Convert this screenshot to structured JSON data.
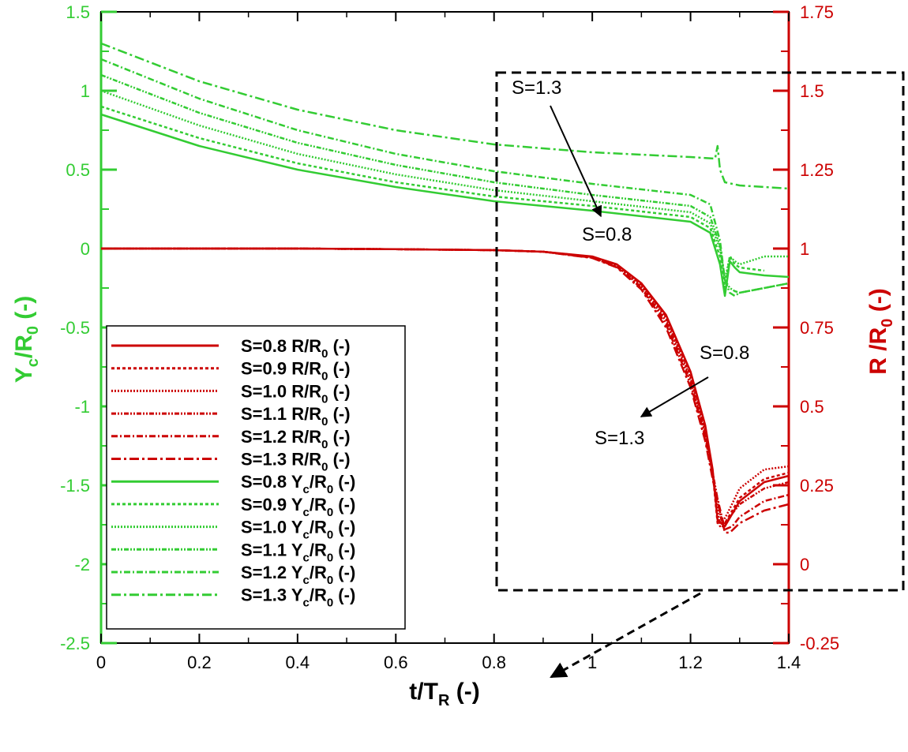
{
  "chart_data": {
    "type": "line",
    "title": "",
    "xlabel": "t/T_R (-)",
    "ylabel_left": "Y_c/R_0 (-)",
    "ylabel_right": "R /R_0 (-)",
    "xlim": [
      0,
      1.4
    ],
    "ylim_left": [
      -2.5,
      1.5
    ],
    "ylim_right": [
      -0.25,
      1.75
    ],
    "xticks": [
      "0",
      "0.2",
      "0.4",
      "0.6",
      "0.8",
      "1",
      "1.2",
      "1.4"
    ],
    "yticks_left": [
      "1.5",
      "1",
      "0.5",
      "0",
      "-0.5",
      "-1",
      "-1.5",
      "-2",
      "-2.5"
    ],
    "yticks_right": [
      "1.75",
      "1.5",
      "1.25",
      "1",
      "0.75",
      "0.5",
      "0.25",
      "0",
      "-0.25"
    ],
    "colors": {
      "radius": "#cc0000",
      "centroid": "#33cc33"
    },
    "series": [
      {
        "name": "S=0.8 R/R0 (-)",
        "label": "S=0.8 R/R",
        "sub": "0",
        "suffix": " (-)",
        "axis": "right",
        "color": "#cc0000",
        "dash": "",
        "x": [
          0,
          0.2,
          0.4,
          0.6,
          0.8,
          0.9,
          1.0,
          1.05,
          1.1,
          1.15,
          1.2,
          1.23,
          1.245,
          1.255,
          1.27,
          1.3,
          1.35,
          1.4
        ],
        "y": [
          1.0,
          1.0,
          1.0,
          0.998,
          0.995,
          0.99,
          0.975,
          0.95,
          0.89,
          0.79,
          0.61,
          0.44,
          0.3,
          0.14,
          0.12,
          0.2,
          0.26,
          0.28
        ]
      },
      {
        "name": "S=0.9 R/R0 (-)",
        "label": "S=0.9 R/R",
        "sub": "0",
        "suffix": " (-)",
        "axis": "right",
        "color": "#cc0000",
        "dash": "4,3",
        "x": [
          0,
          0.2,
          0.4,
          0.6,
          0.8,
          0.9,
          1.0,
          1.05,
          1.1,
          1.15,
          1.2,
          1.23,
          1.245,
          1.255,
          1.27,
          1.3,
          1.35,
          1.4
        ],
        "y": [
          1.0,
          1.0,
          1.0,
          0.998,
          0.995,
          0.99,
          0.974,
          0.948,
          0.886,
          0.785,
          0.6,
          0.43,
          0.29,
          0.13,
          0.13,
          0.21,
          0.27,
          0.29
        ]
      },
      {
        "name": "S=1.0 R/R0 (-)",
        "label": "S=1.0 R/R",
        "sub": "0",
        "suffix": " (-)",
        "axis": "right",
        "color": "#cc0000",
        "dash": "2,2",
        "x": [
          0,
          0.2,
          0.4,
          0.6,
          0.8,
          0.9,
          1.0,
          1.05,
          1.1,
          1.15,
          1.2,
          1.23,
          1.245,
          1.26,
          1.275,
          1.3,
          1.35,
          1.4
        ],
        "y": [
          1.0,
          1.0,
          1.0,
          0.998,
          0.995,
          0.99,
          0.973,
          0.946,
          0.882,
          0.78,
          0.59,
          0.42,
          0.28,
          0.12,
          0.16,
          0.24,
          0.3,
          0.31
        ]
      },
      {
        "name": "S=1.1 R/R0 (-)",
        "label": "S=1.1 R/R",
        "sub": "0",
        "suffix": " (-)",
        "axis": "right",
        "color": "#cc0000",
        "dash": "6,2,2,2,2,2",
        "x": [
          0,
          0.2,
          0.4,
          0.6,
          0.8,
          0.9,
          1.0,
          1.05,
          1.1,
          1.15,
          1.2,
          1.23,
          1.25,
          1.265,
          1.28,
          1.3,
          1.35,
          1.4
        ],
        "y": [
          1.0,
          1.0,
          1.0,
          0.998,
          0.995,
          0.99,
          0.972,
          0.944,
          0.878,
          0.77,
          0.58,
          0.41,
          0.25,
          0.12,
          0.15,
          0.19,
          0.24,
          0.26
        ]
      },
      {
        "name": "S=1.2 R/R0 (-)",
        "label": "S=1.2 R/R",
        "sub": "0",
        "suffix": " (-)",
        "axis": "right",
        "color": "#cc0000",
        "dash": "8,3,2,3",
        "x": [
          0,
          0.2,
          0.4,
          0.6,
          0.8,
          0.9,
          1.0,
          1.05,
          1.1,
          1.15,
          1.2,
          1.23,
          1.25,
          1.27,
          1.285,
          1.3,
          1.35,
          1.4
        ],
        "y": [
          1.0,
          1.0,
          1.0,
          0.998,
          0.995,
          0.99,
          0.971,
          0.942,
          0.874,
          0.76,
          0.57,
          0.4,
          0.24,
          0.11,
          0.12,
          0.15,
          0.2,
          0.22
        ]
      },
      {
        "name": "S=1.3 R/R0 (-)",
        "label": "S=1.3 R/R",
        "sub": "0",
        "suffix": " (-)",
        "axis": "right",
        "color": "#cc0000",
        "dash": "12,4,3,4",
        "x": [
          0,
          0.2,
          0.4,
          0.6,
          0.8,
          0.9,
          1.0,
          1.05,
          1.1,
          1.15,
          1.2,
          1.23,
          1.25,
          1.27,
          1.28,
          1.3,
          1.35,
          1.4
        ],
        "y": [
          1.0,
          1.0,
          1.0,
          0.998,
          0.995,
          0.99,
          0.97,
          0.94,
          0.87,
          0.75,
          0.56,
          0.39,
          0.23,
          0.1,
          0.1,
          0.13,
          0.17,
          0.19
        ]
      },
      {
        "name": "S=0.8 Yc/R0 (-)",
        "label": "S=0.8 Y",
        "sub": "c",
        "mid": "/R",
        "sub2": "0",
        "suffix": " (-)",
        "axis": "left",
        "color": "#33cc33",
        "dash": "",
        "x": [
          0,
          0.2,
          0.4,
          0.6,
          0.8,
          1.0,
          1.2,
          1.24,
          1.26,
          1.27,
          1.28,
          1.29,
          1.3,
          1.35,
          1.4
        ],
        "y": [
          0.85,
          0.65,
          0.5,
          0.39,
          0.3,
          0.24,
          0.17,
          0.1,
          -0.1,
          -0.3,
          -0.08,
          -0.12,
          -0.15,
          -0.17,
          -0.18
        ]
      },
      {
        "name": "S=0.9 Yc/R0 (-)",
        "label": "S=0.9 Y",
        "sub": "c",
        "mid": "/R",
        "sub2": "0",
        "suffix": " (-)",
        "axis": "left",
        "color": "#33cc33",
        "dash": "4,3",
        "x": [
          0,
          0.2,
          0.4,
          0.6,
          0.8,
          1.0,
          1.2,
          1.24,
          1.26,
          1.27,
          1.28,
          1.29,
          1.3,
          1.35
        ],
        "y": [
          0.9,
          0.7,
          0.54,
          0.42,
          0.33,
          0.27,
          0.2,
          0.13,
          -0.05,
          -0.25,
          -0.05,
          -0.1,
          -0.12,
          -0.14
        ]
      },
      {
        "name": "S=1.0 Yc/R0 (-)",
        "label": "S=1.0 Y",
        "sub": "c",
        "mid": "/R",
        "sub2": "0",
        "suffix": " (-)",
        "axis": "left",
        "color": "#33cc33",
        "dash": "2,2",
        "x": [
          0,
          0.2,
          0.4,
          0.6,
          0.8,
          1.0,
          1.2,
          1.24,
          1.26,
          1.27,
          1.28,
          1.29,
          1.3,
          1.35,
          1.4
        ],
        "y": [
          1.0,
          0.78,
          0.6,
          0.47,
          0.37,
          0.3,
          0.23,
          0.16,
          0.0,
          -0.2,
          -0.05,
          -0.08,
          -0.1,
          -0.05,
          -0.05
        ]
      },
      {
        "name": "S=1.1 Yc/R0 (-)",
        "label": "S=1.1 Y",
        "sub": "c",
        "mid": "/R",
        "sub2": "0",
        "suffix": " (-)",
        "axis": "left",
        "color": "#33cc33",
        "dash": "6,2,2,2,2,2",
        "x": [
          0,
          0.2,
          0.4,
          0.6,
          0.8,
          1.0,
          1.2,
          1.24,
          1.26,
          1.27,
          1.28,
          1.29,
          1.3,
          1.35,
          1.4
        ],
        "y": [
          1.1,
          0.86,
          0.67,
          0.53,
          0.42,
          0.34,
          0.27,
          0.2,
          0.02,
          -0.2,
          -0.25,
          -0.27,
          -0.28,
          -0.25,
          -0.22
        ]
      },
      {
        "name": "S=1.2 Yc/R0 (-)",
        "label": "S=1.2 Y",
        "sub": "c",
        "mid": "/R",
        "sub2": "0",
        "suffix": " (-)",
        "axis": "left",
        "color": "#33cc33",
        "dash": "8,3,2,3",
        "x": [
          0,
          0.2,
          0.4,
          0.6,
          0.8,
          1.0,
          1.2,
          1.24,
          1.26,
          1.27,
          1.28,
          1.29,
          1.3,
          1.35,
          1.4
        ],
        "y": [
          1.2,
          0.95,
          0.75,
          0.6,
          0.49,
          0.41,
          0.34,
          0.28,
          0.05,
          -0.2,
          -0.28,
          -0.3,
          -0.28,
          -0.25,
          -0.22
        ]
      },
      {
        "name": "S=1.3 Yc/R0 (-)",
        "label": "S=1.3 Y",
        "sub": "c",
        "mid": "/R",
        "sub2": "0",
        "suffix": " (-)",
        "axis": "left",
        "color": "#33cc33",
        "dash": "12,4,3,4",
        "x": [
          0,
          0.2,
          0.4,
          0.6,
          0.8,
          1.0,
          1.2,
          1.25,
          1.255,
          1.26,
          1.27,
          1.3,
          1.35,
          1.4
        ],
        "y": [
          1.3,
          1.06,
          0.88,
          0.75,
          0.66,
          0.61,
          0.58,
          0.57,
          0.65,
          0.5,
          0.42,
          0.4,
          0.39,
          0.38
        ]
      }
    ],
    "annotations": [
      {
        "id": "ann-s13-top",
        "text": "S=1.3"
      },
      {
        "id": "ann-s08-top",
        "text": "S=0.8"
      },
      {
        "id": "ann-s08-mid",
        "text": "S=0.8"
      },
      {
        "id": "ann-s13-mid",
        "text": "S=1.3"
      }
    ]
  }
}
